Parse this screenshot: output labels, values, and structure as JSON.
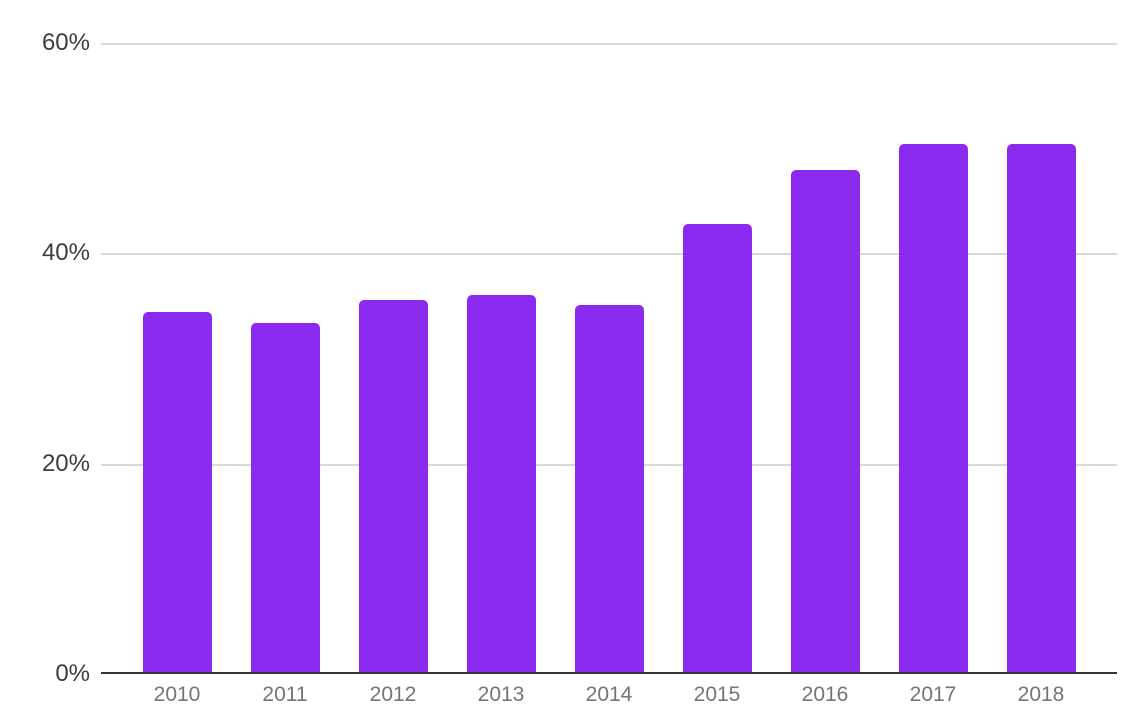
{
  "chart_data": {
    "type": "bar",
    "title": "",
    "xlabel": "",
    "ylabel": "",
    "categories": [
      "2010",
      "2011",
      "2012",
      "2013",
      "2014",
      "2015",
      "2016",
      "2017",
      "2018"
    ],
    "values": [
      34.4,
      33.4,
      35.6,
      36.0,
      35.1,
      42.8,
      47.9,
      50.4,
      50.4
    ],
    "ylim": [
      0,
      60
    ],
    "yticks": [
      0,
      20,
      40,
      60
    ],
    "ytick_labels": [
      "0%",
      "20%",
      "40%",
      "60%"
    ],
    "grid": true,
    "legend": false,
    "colors": {
      "bar": "#8b2bef",
      "background": "#ffffff",
      "gridline": "#d9d9d9",
      "axis_line": "#333333",
      "ytick_text": "#3d3d3d",
      "xtick_text": "#757575"
    }
  }
}
